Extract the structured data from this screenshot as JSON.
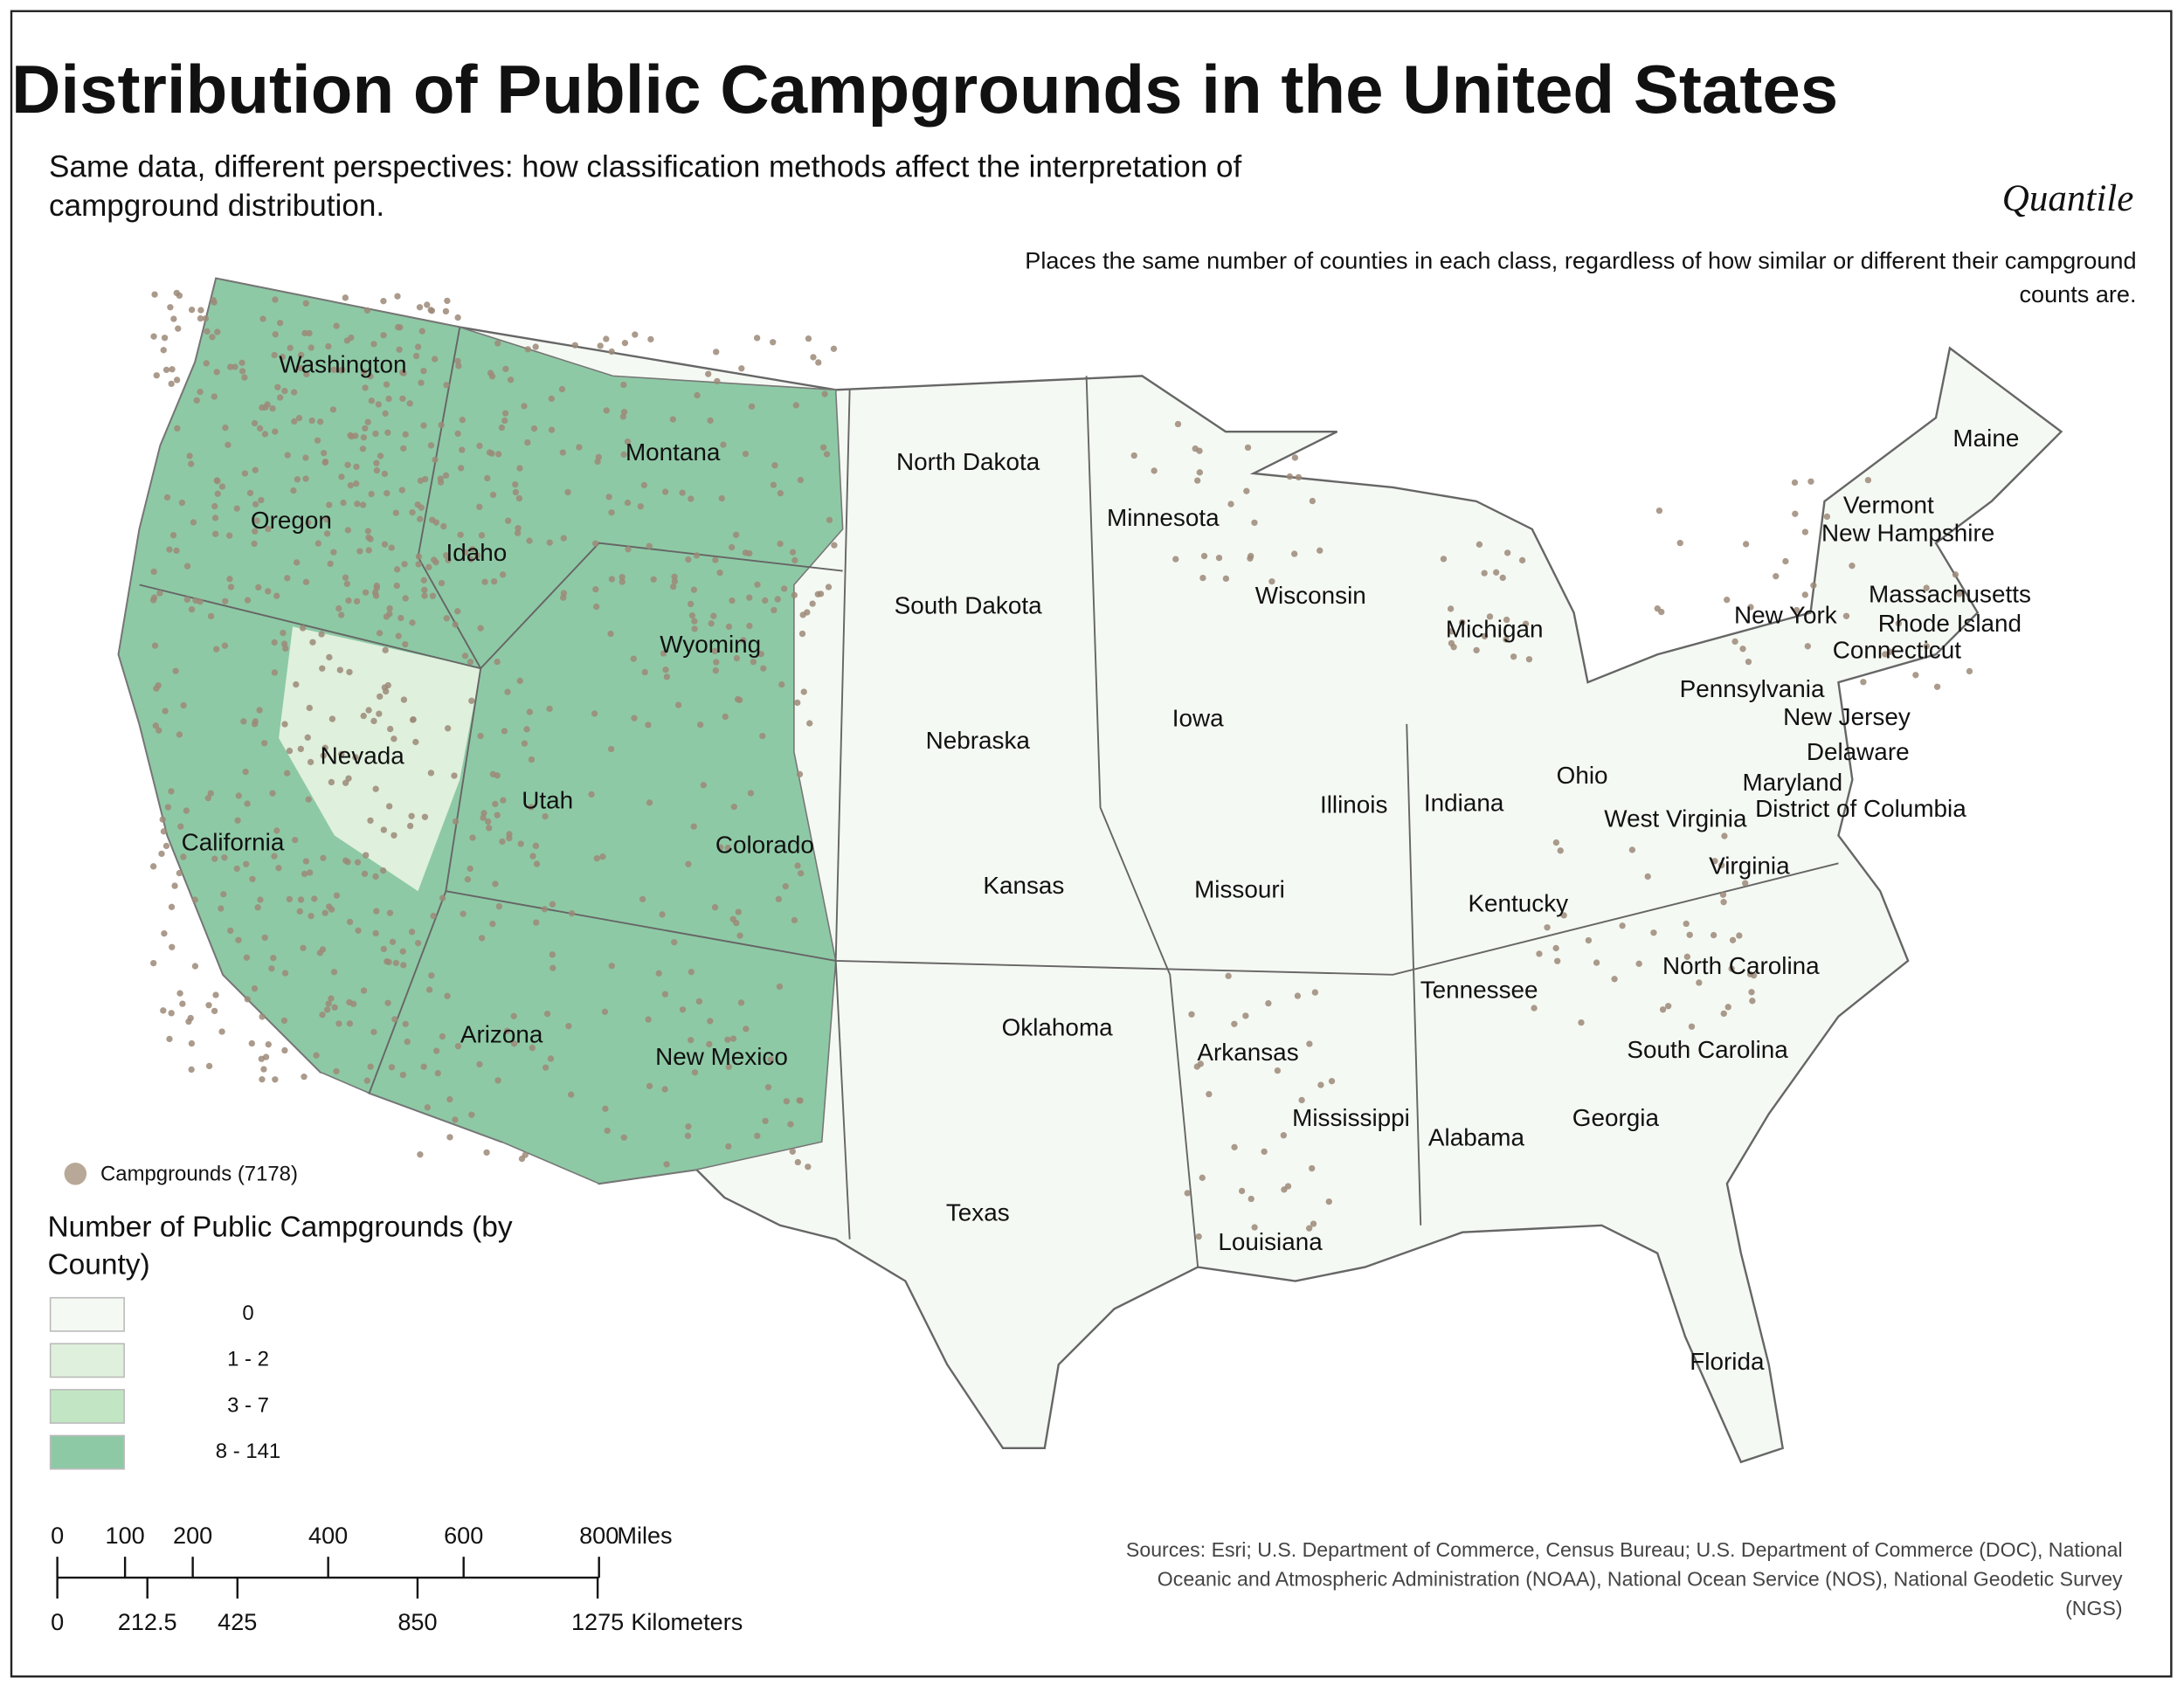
{
  "header": {
    "title": "Distribution of Public Campgrounds in the United States",
    "subtitle": "Same data, different perspectives: how classification methods affect the interpretation of campground distribution.",
    "method": "Quantile",
    "method_description": "Places the same number of counties in each class, regardless of how similar or different their campground counts are."
  },
  "map": {
    "states": [
      "Washington",
      "Oregon",
      "Idaho",
      "Montana",
      "Wyoming",
      "Nevada",
      "Utah",
      "Colorado",
      "California",
      "Arizona",
      "New Mexico",
      "North Dakota",
      "South Dakota",
      "Nebraska",
      "Kansas",
      "Oklahoma",
      "Texas",
      "Minnesota",
      "Iowa",
      "Missouri",
      "Arkansas",
      "Louisiana",
      "Wisconsin",
      "Illinois",
      "Michigan",
      "Indiana",
      "Ohio",
      "Kentucky",
      "Tennessee",
      "Mississippi",
      "Alabama",
      "Georgia",
      "Florida",
      "South Carolina",
      "North Carolina",
      "Virginia",
      "West Virginia",
      "Pennsylvania",
      "New York",
      "Maine",
      "Vermont",
      "New Hampshire",
      "Massachusetts",
      "Rhode Island",
      "Connecticut",
      "New Jersey",
      "Delaware",
      "Maryland",
      "District of Columbia"
    ]
  },
  "legend": {
    "points_label": "Campgrounds (7178)",
    "points_color": "#b8a898",
    "title": "Number of Public Campgrounds (by County)",
    "classes": [
      {
        "label": "0",
        "color": "#f5f9f3"
      },
      {
        "label": "1 - 2",
        "color": "#dff0dc"
      },
      {
        "label": "3 - 7",
        "color": "#c2e6c4"
      },
      {
        "label": "8 - 141",
        "color": "#8ec9a5"
      }
    ]
  },
  "scale_bar": {
    "miles": [
      0,
      100,
      200,
      400,
      600,
      800
    ],
    "miles_unit": "Miles",
    "kilometers": [
      0,
      212.5,
      425,
      850,
      1275
    ],
    "kilometers_unit": "Kilometers"
  },
  "sources": "Sources: Esri; U.S. Department of Commerce, Census Bureau; U.S. Department of Commerce (DOC), National Oceanic and Atmospheric Administration (NOAA), National Ocean Service (NOS), National Geodetic Survey (NGS)"
}
